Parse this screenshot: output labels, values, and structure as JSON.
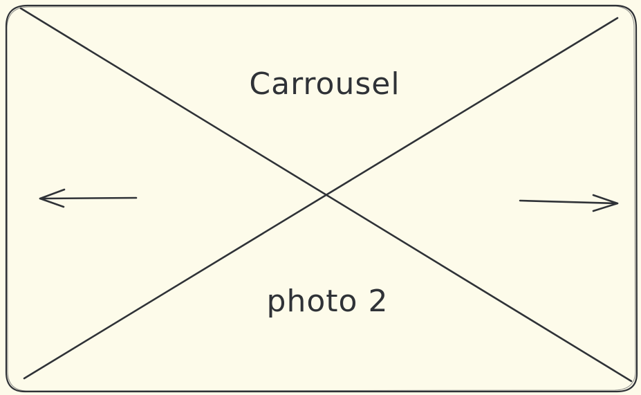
{
  "carousel": {
    "title": "Carrousel",
    "caption": "photo 2",
    "prev_icon": "arrow-left-icon",
    "next_icon": "arrow-right-icon"
  },
  "colors": {
    "background": "#fdfbea",
    "stroke": "#2f3237"
  }
}
